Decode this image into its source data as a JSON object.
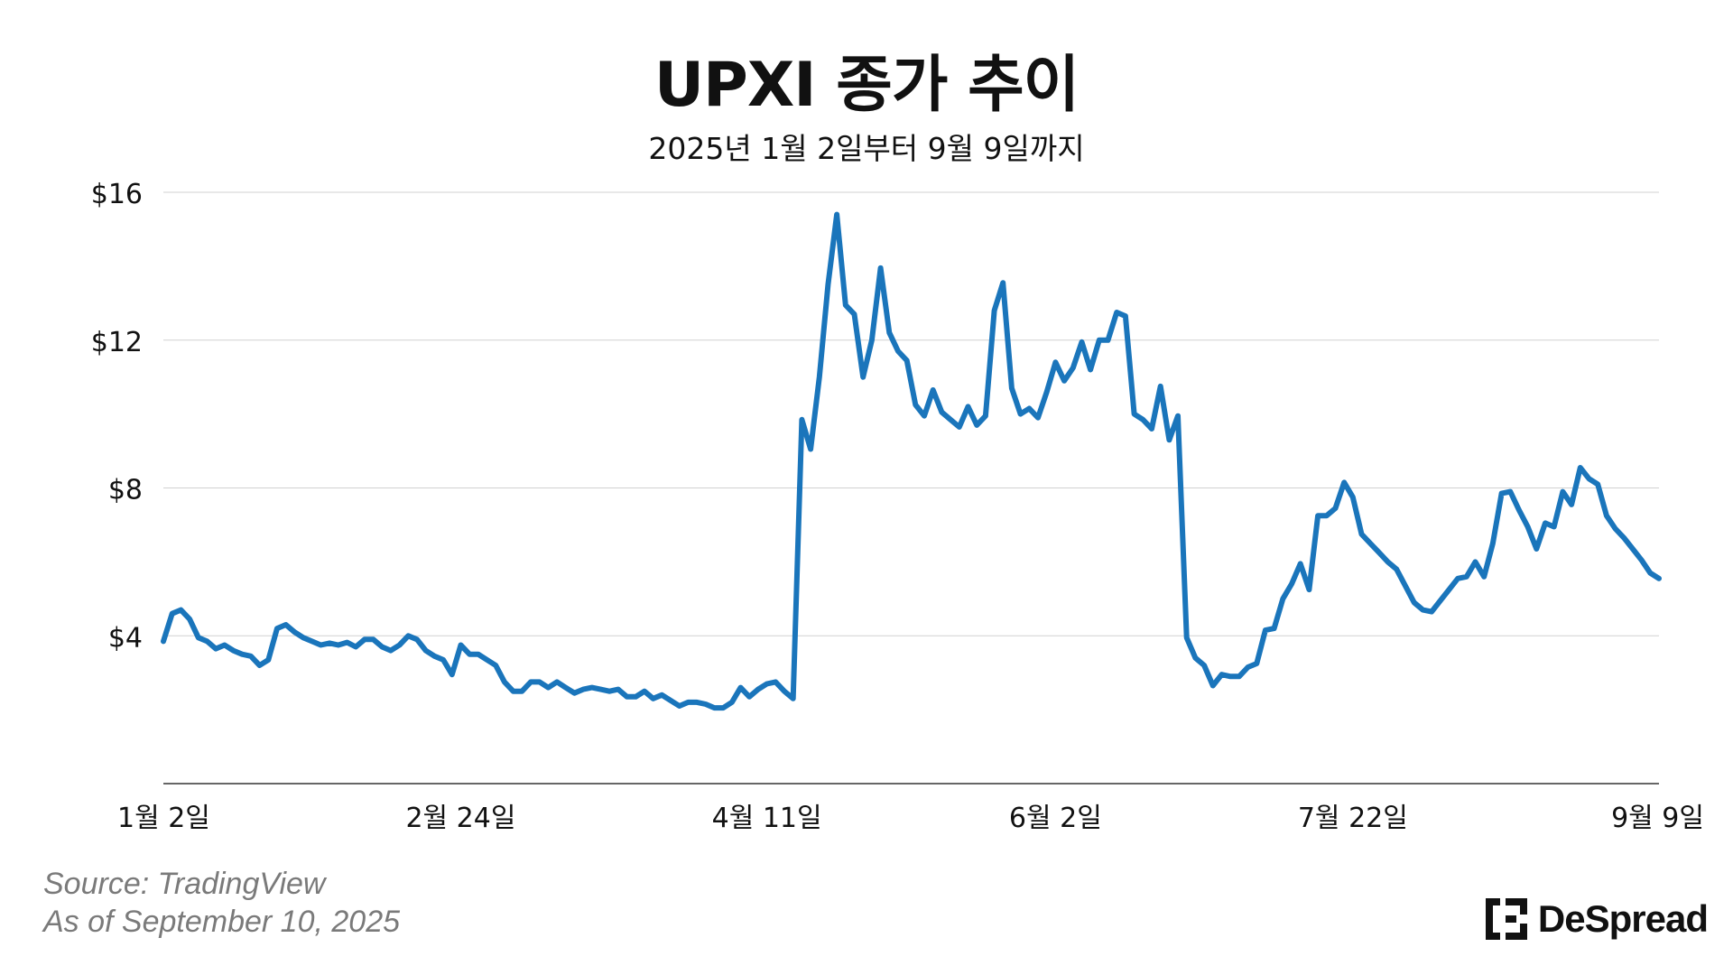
{
  "chart_data": {
    "type": "line",
    "title": "UPXI 종가 추이",
    "subtitle": "2025년 1월 2일부터 9월 9일까지",
    "xlabel": "",
    "ylabel": "",
    "ylim": [
      0,
      16
    ],
    "yticks": [
      4,
      8,
      12,
      16
    ],
    "ytick_labels": [
      "$4",
      "$8",
      "$12",
      "$16"
    ],
    "grid": true,
    "legend": "none",
    "xticks": [
      {
        "index": 0,
        "label": "1월 2일"
      },
      {
        "index": 34,
        "label": "2월 24일"
      },
      {
        "index": 69,
        "label": "4월 11일"
      },
      {
        "index": 102,
        "label": "6월 2일"
      },
      {
        "index": 136,
        "label": "7월 22일"
      },
      {
        "index": 169,
        "label": "9월 9일"
      }
    ],
    "series": [
      {
        "values": [
          3.85,
          4.6,
          4.7,
          4.45,
          3.95,
          3.85,
          3.65,
          3.75,
          3.6,
          3.5,
          3.45,
          3.2,
          3.35,
          4.2,
          4.3,
          4.1,
          3.95,
          3.85,
          3.75,
          3.8,
          3.75,
          3.82,
          3.7,
          3.9,
          3.9,
          3.7,
          3.6,
          3.75,
          4.0,
          3.9,
          3.6,
          3.45,
          3.35,
          2.95,
          3.75,
          3.5,
          3.5,
          3.35,
          3.2,
          2.75,
          2.5,
          2.5,
          2.75,
          2.75,
          2.6,
          2.75,
          2.6,
          2.45,
          2.55,
          2.6,
          2.55,
          2.5,
          2.55,
          2.35,
          2.35,
          2.5,
          2.3,
          2.4,
          2.25,
          2.1,
          2.2,
          2.2,
          2.15,
          2.05,
          2.05,
          2.2,
          2.6,
          2.35,
          2.55,
          2.7,
          2.75,
          2.5,
          2.3,
          9.85,
          9.05,
          11.0,
          13.5,
          15.4,
          12.95,
          12.7,
          11.0,
          12.0,
          13.95,
          12.2,
          11.7,
          11.45,
          10.25,
          9.95,
          10.65,
          10.05,
          9.85,
          9.65,
          10.2,
          9.7,
          9.95,
          12.8,
          13.55,
          10.7,
          10.0,
          10.15,
          9.9,
          10.6,
          11.4,
          10.9,
          11.25,
          11.95,
          11.2,
          12.0,
          12.0,
          12.75,
          12.65,
          10.0,
          9.85,
          9.6,
          10.75,
          9.3,
          9.95,
          3.95,
          3.4,
          3.2,
          2.65,
          2.95,
          2.9,
          2.9,
          3.15,
          3.25,
          4.15,
          4.2,
          5.0,
          5.4,
          5.95,
          5.25,
          7.25,
          7.25,
          7.45,
          8.15,
          7.75,
          6.75,
          6.5,
          6.25,
          6.0,
          5.8,
          5.35,
          4.9,
          4.7,
          4.65,
          4.95,
          5.25,
          5.55,
          5.6,
          6.0,
          5.6,
          6.5,
          7.85,
          7.9,
          7.4,
          6.95,
          6.35,
          7.05,
          6.95,
          7.9,
          7.55,
          8.55,
          8.25,
          8.1,
          7.25,
          6.9,
          6.65,
          6.35,
          6.05,
          5.7,
          5.55
        ]
      }
    ]
  },
  "footer": {
    "source_line": "Source: TradingView",
    "asof_line": "As of September 10, 2025",
    "brand": "DeSpread",
    "brand_icon": "despread-logo-icon"
  },
  "colors": {
    "line": "#1a75bb",
    "grid": "#d0d0d0",
    "axis": "#333333",
    "text": "#111111",
    "source_text": "#7a7a7a"
  }
}
